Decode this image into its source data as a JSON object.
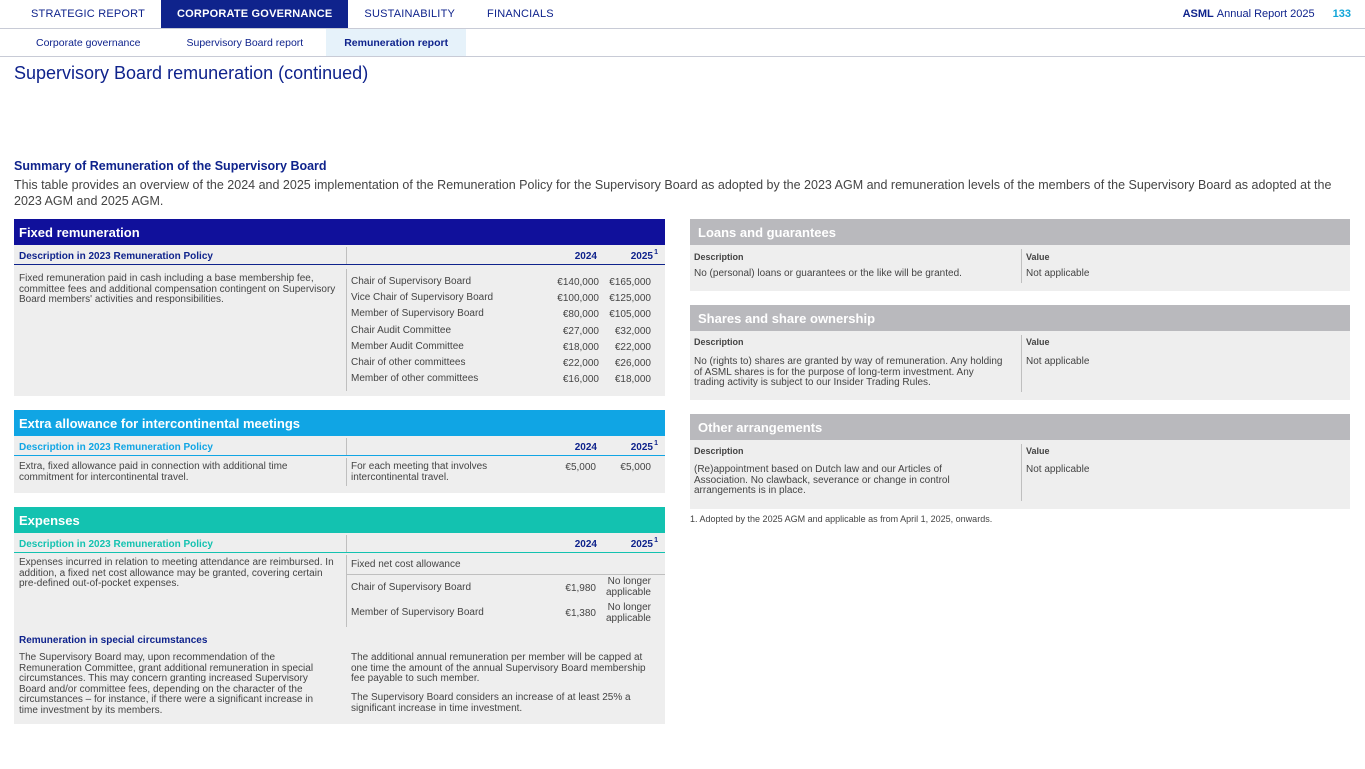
{
  "topnav": {
    "tabs": [
      "STRATEGIC REPORT",
      "CORPORATE GOVERNANCE",
      "SUSTAINABILITY",
      "FINANCIALS"
    ],
    "brand_bold": "ASML",
    "brand_rest": "Annual Report 2025",
    "page_number": "133"
  },
  "subnav": {
    "tabs": [
      "Corporate governance",
      "Supervisory Board report",
      "Remuneration report"
    ]
  },
  "page_title": "Supervisory Board remuneration (continued)",
  "section": {
    "title": "Summary of Remuneration of the Supervisory Board",
    "intro": "This table provides an overview of the 2024 and 2025 implementation of the Remuneration Policy for the Supervisory Board as adopted by the 2023 AGM and remuneration levels of the members of the Supervisory Board as adopted at the 2023 AGM and 2025 AGM."
  },
  "fixed": {
    "header": "Fixed remuneration",
    "col_desc": "Description in 2023 Remuneration Policy",
    "col_2024": "2024",
    "col_2025": "2025",
    "sup": "1",
    "description": "Fixed remuneration paid in cash including a base membership fee, committee fees and additional compensation contingent on Supervisory Board members' activities and responsibilities.",
    "rows": [
      {
        "label": "Chair of Supervisory Board",
        "v2024": "€140,000",
        "v2025": "€165,000"
      },
      {
        "label": "Vice Chair of Supervisory Board",
        "v2024": "€100,000",
        "v2025": "€125,000"
      },
      {
        "label": "Member of Supervisory Board",
        "v2024": "€80,000",
        "v2025": "€105,000"
      },
      {
        "label": "Chair Audit Committee",
        "v2024": "€27,000",
        "v2025": "€32,000"
      },
      {
        "label": "Member Audit Committee",
        "v2024": "€18,000",
        "v2025": "€22,000"
      },
      {
        "label": "Chair of other committees",
        "v2024": "€22,000",
        "v2025": "€26,000"
      },
      {
        "label": "Member of other committees",
        "v2024": "€16,000",
        "v2025": "€18,000"
      }
    ]
  },
  "extra": {
    "header": "Extra allowance for intercontinental meetings",
    "col_desc": "Description in 2023 Remuneration Policy",
    "col_2024": "2024",
    "col_2025": "2025",
    "sup": "1",
    "description": "Extra, fixed allowance paid in connection with additional time commitment for intercontinental travel.",
    "label": "For each meeting that involves intercontinental travel.",
    "v2024": "€5,000",
    "v2025": "€5,000"
  },
  "expenses": {
    "header": "Expenses",
    "col_desc": "Description in 2023 Remuneration Policy",
    "col_2024": "2024",
    "col_2025": "2025",
    "sup": "1",
    "description": "Expenses incurred in relation to meeting attendance are reimbursed. In addition, a fixed net cost allowance may be granted, covering certain pre-defined out-of-pocket expenses.",
    "allowance_title": "Fixed net cost allowance",
    "rows": [
      {
        "label": "Chair of Supervisory Board",
        "v2024": "€1,980",
        "v2025": "No longer applicable"
      },
      {
        "label": "Member of Supervisory Board",
        "v2024": "€1,380",
        "v2025": "No longer applicable"
      }
    ],
    "special_title": "Remuneration in special circumstances",
    "special_left": "The Supervisory Board may, upon recommendation of the Remuneration Committee, grant additional remuneration in special circumstances. This may concern granting increased Supervisory Board and/or committee fees, depending on the character of the circumstances – for instance, if there were a significant increase in time investment by its members.",
    "special_right_1": "The additional annual remuneration per member will be capped at one time the amount of the annual Supervisory Board membership fee payable to such member.",
    "special_right_2": "The Supervisory Board considers an increase of at least 25% a significant increase in time investment."
  },
  "loans": {
    "header": "Loans and guarantees",
    "col_desc": "Description",
    "col_value": "Value",
    "description": "No (personal) loans or guarantees or the like will be granted.",
    "value": "Not applicable"
  },
  "shares": {
    "header": "Shares and share ownership",
    "col_desc": "Description",
    "col_value": "Value",
    "description": "No (rights to) shares are granted by way of remuneration. Any holding of ASML shares is for the purpose of long-term investment. Any trading activity is subject to our Insider Trading Rules.",
    "value": "Not applicable"
  },
  "other": {
    "header": "Other arrangements",
    "col_desc": "Description",
    "col_value": "Value",
    "description": "(Re)appointment based on Dutch law and our Articles of Association. No clawback, severance or change in control arrangements is in place.",
    "value": "Not applicable"
  },
  "footnote": "1.  Adopted by the 2025 AGM and applicable as from April 1, 2025, onwards.",
  "colors": {
    "navy": "#0f238c",
    "fixed_header": "#10109b",
    "extra_header": "#10a5e4",
    "expenses_header": "#13c2b0",
    "grey_header": "#b9b9bd",
    "panel_bg": "#eeeeee",
    "page_number": "#10a5d8"
  }
}
